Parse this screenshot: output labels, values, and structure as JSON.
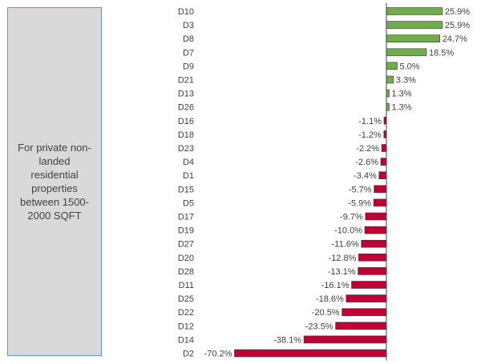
{
  "side_panel": {
    "text": "For private non-landed residential properties between 1500-2000 SQFT"
  },
  "colors": {
    "positive": "#70ad47",
    "negative": "#c00034",
    "bar_outline": "#3a3a3a",
    "axis": "#404040",
    "panel_border": "#5b9bd5",
    "panel_fill": "#d9d9d9"
  },
  "chart_data": {
    "type": "bar",
    "orientation": "horizontal",
    "categories": [
      "D10",
      "D3",
      "D8",
      "D7",
      "D9",
      "D21",
      "D13",
      "D26",
      "D16",
      "D18",
      "D23",
      "D4",
      "D1",
      "D15",
      "D5",
      "D17",
      "D19",
      "D27",
      "D20",
      "D28",
      "D11",
      "D25",
      "D22",
      "D12",
      "D14",
      "D2"
    ],
    "values": [
      25.9,
      25.9,
      24.7,
      18.5,
      5.0,
      3.3,
      1.3,
      1.3,
      -1.1,
      -1.2,
      -2.2,
      -2.6,
      -3.4,
      -5.7,
      -5.9,
      -9.7,
      -10.0,
      -11.6,
      -12.8,
      -13.1,
      -16.1,
      -18.6,
      -20.5,
      -23.5,
      -38.1,
      -70.2
    ],
    "value_labels": [
      "25.9%",
      "25.9%",
      "24.7%",
      "18.5%",
      "5.0%",
      "3.3%",
      "1.3%",
      "1.3%",
      "-1.1%",
      "-1.2%",
      "-2.2%",
      "-2.6%",
      "-3.4%",
      "-5.7%",
      "-5.9%",
      "-9.7%",
      "-10.0%",
      "-11.6%",
      "-12.8%",
      "-13.1%",
      "-16.1%",
      "-18.6%",
      "-20.5%",
      "-23.5%",
      "-38.1%",
      "-70.2%"
    ],
    "title": "",
    "xlabel": "",
    "ylabel": "",
    "xlim": [
      -70.2,
      25.9
    ],
    "grid": false,
    "legend": "none"
  }
}
